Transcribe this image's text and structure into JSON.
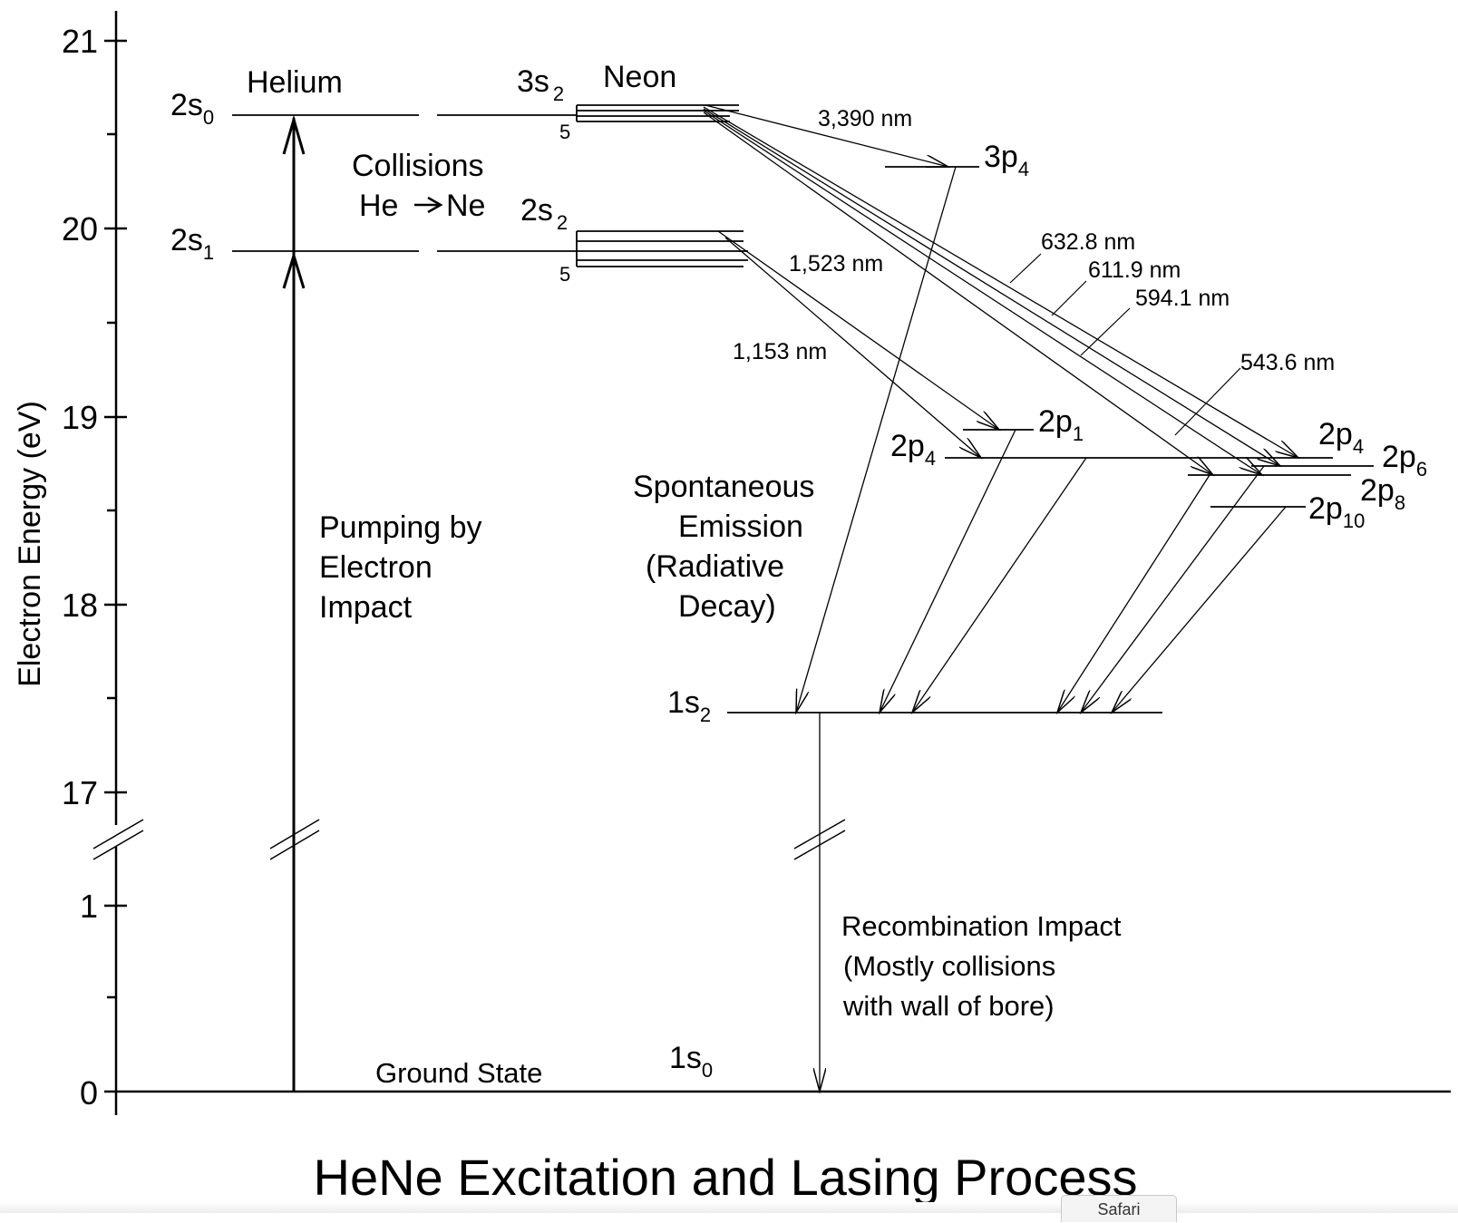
{
  "title": "HeNe Excitation and Lasing Process",
  "y_axis": {
    "label": "Electron Energy (eV)",
    "ticks": [
      "21",
      "20",
      "19",
      "18",
      "17",
      "1",
      "0"
    ]
  },
  "helium": {
    "name": "Helium",
    "levels": [
      {
        "main": "2s",
        "sub": "0",
        "energy_ev": 20.61
      },
      {
        "main": "2s",
        "sub": "1",
        "energy_ev": 19.82
      }
    ]
  },
  "neon": {
    "name": "Neon",
    "levels": [
      {
        "main": "3s",
        "sub": "2",
        "sub2": "5",
        "energy_ev": 20.66
      },
      {
        "main": "2s",
        "sub": "2",
        "sub2": "5",
        "energy_ev": 19.78
      },
      {
        "main": "3p",
        "sub": "4",
        "energy_ev": 20.3
      },
      {
        "main": "2p",
        "sub": "1",
        "energy_ev": 18.95
      },
      {
        "main": "2p",
        "sub": "4",
        "energy_ev": 18.78
      },
      {
        "main": "2p",
        "sub": "4",
        "energy_ev": 18.78
      },
      {
        "main": "2p",
        "sub": "6",
        "energy_ev": 18.74
      },
      {
        "main": "2p",
        "sub": "8",
        "energy_ev": 18.7
      },
      {
        "main": "2p",
        "sub": "10",
        "energy_ev": 18.38
      },
      {
        "main": "1s",
        "sub": "2",
        "energy_ev": 16.85
      },
      {
        "main": "1s",
        "sub": "0",
        "energy_ev": 0
      }
    ]
  },
  "transitions": [
    {
      "label": "3,390 nm",
      "color": "#000000"
    },
    {
      "label": "632.8 nm",
      "color": "#e8402a"
    },
    {
      "label": "611.9 nm",
      "color": "#e89050"
    },
    {
      "label": "594.1 nm",
      "color": "#e8e040"
    },
    {
      "label": "543.6 nm",
      "color": "#40b840"
    },
    {
      "label": "1,523 nm",
      "color": "#8a1a10"
    },
    {
      "label": "1,153 nm",
      "color": "#8a4a1a"
    }
  ],
  "annotations": {
    "collisions_line1": "Collisions",
    "collisions_he": "He",
    "collisions_ne": "Ne",
    "pumping": [
      "Pumping by",
      "Electron",
      "Impact"
    ],
    "spontaneous": [
      "Spontaneous",
      "Emission",
      "(Radiative",
      "Decay)"
    ],
    "recombination": [
      "Recombination Impact",
      "(Mostly collisions",
      "with wall of bore)"
    ],
    "ground_state": "Ground State"
  },
  "window": {
    "tab_label": "Safari"
  }
}
